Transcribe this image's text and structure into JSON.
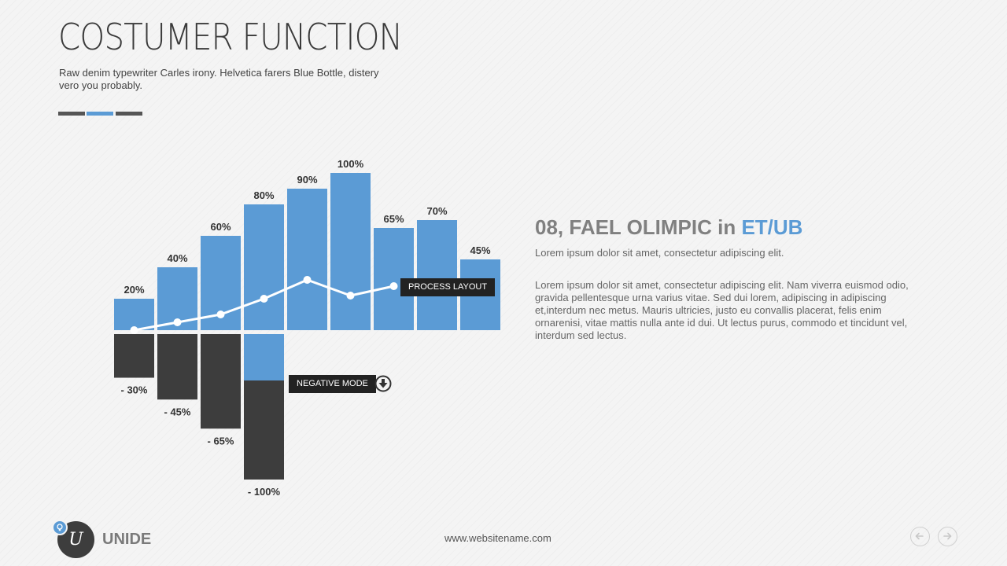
{
  "header": {
    "title": "COSTUMER FUNCTION",
    "subtitle": "Raw denim typewriter Carles irony. Helvetica farers Blue Bottle, distery vero you probably."
  },
  "colors": {
    "accent": "#5b9bd5",
    "dark": "#3d3d3d",
    "deco_gray": "#555555",
    "line": "#ffffff"
  },
  "chart_data": {
    "type": "bar",
    "positive_series": {
      "values": [
        20,
        40,
        60,
        80,
        90,
        100,
        65,
        70,
        45
      ],
      "labels": [
        "20%",
        "40%",
        "60%",
        "80%",
        "90%",
        "100%",
        "65%",
        "70%",
        "45%"
      ]
    },
    "negative_series": {
      "values": [
        -30,
        -45,
        -65,
        -100
      ],
      "labels": [
        "- 30%",
        "- 45%",
        "- 65%",
        "- 100%"
      ]
    },
    "trend_line": {
      "values": [
        0,
        5,
        10,
        20,
        32,
        22,
        28
      ]
    },
    "annotations": {
      "process_layout": "PROCESS LAYOUT",
      "negative_mode": "NEGATIVE MODE"
    }
  },
  "content": {
    "heading_main": "08, FAEL OLIMPIC in ",
    "heading_accent": "ET/UB",
    "lead": "Lorem ipsum dolor sit amet, consectetur adipiscing elit.",
    "body": "Lorem ipsum dolor sit amet, consectetur adipiscing elit. Nam viverra euismod odio, gravida pellentesque urna varius vitae. Sed dui lorem, adipiscing in adipiscing et,interdum nec metus. Mauris ultricies, justo eu convallis placerat, felis enim ornarenisi, vitae mattis nulla ante id dui. Ut lectus purus, commodo et tincidunt vel, interdum sed lectus."
  },
  "footer": {
    "logo_letter": "U",
    "brand": "UNIDE",
    "website": "www.websitename.com",
    "prev_icon": "arrow-left-icon",
    "next_icon": "arrow-right-icon",
    "badge_icon": "lightbulb-icon"
  }
}
